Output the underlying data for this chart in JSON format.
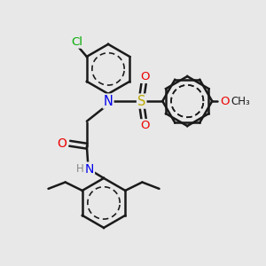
{
  "background_color": "#e8e8e8",
  "bond_color": "#1a1a1a",
  "bond_width": 1.8,
  "atom_colors": {
    "N": "#0000ee",
    "O": "#ee0000",
    "S": "#bbaa00",
    "Cl": "#00aa00",
    "H_gray": "#888888",
    "C": "#1a1a1a"
  },
  "figsize": [
    3.0,
    3.0
  ],
  "dpi": 100
}
